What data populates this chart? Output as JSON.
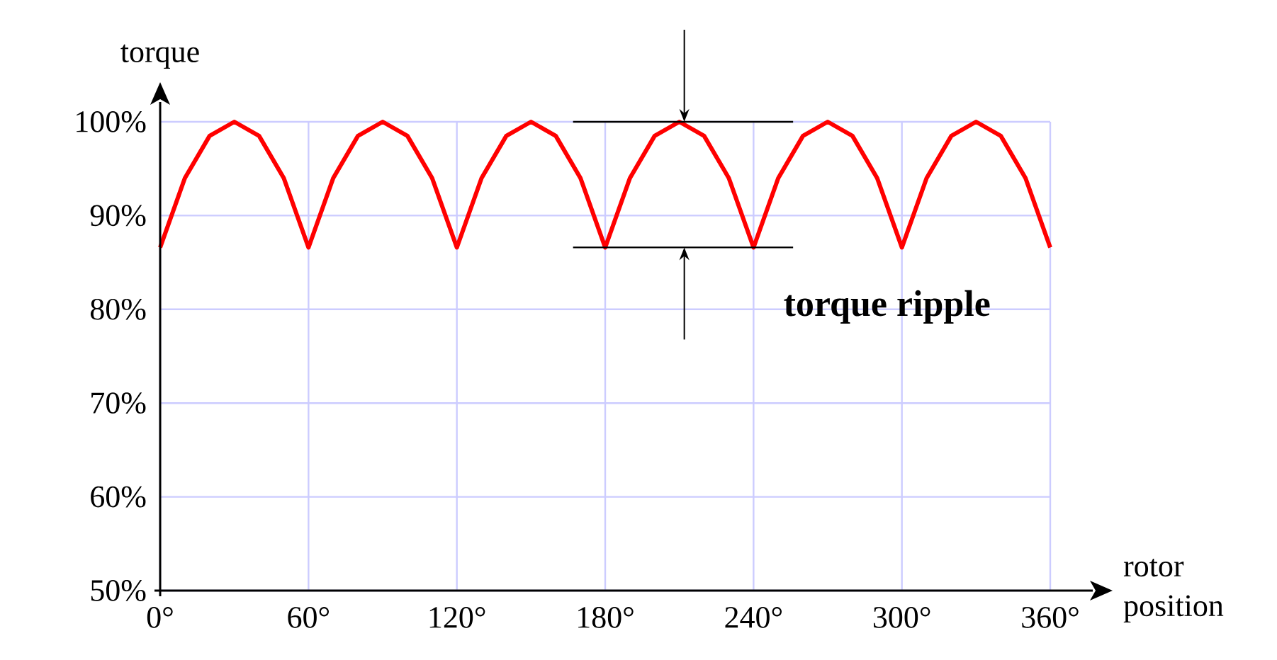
{
  "chart_data": {
    "type": "line",
    "xlabel": "rotor position",
    "ylabel": "torque",
    "x": [
      0,
      10,
      20,
      30,
      40,
      50,
      60,
      70,
      80,
      90,
      100,
      110,
      120,
      130,
      140,
      150,
      160,
      170,
      180,
      190,
      200,
      210,
      220,
      230,
      240,
      250,
      260,
      270,
      280,
      290,
      300,
      310,
      320,
      330,
      340,
      350,
      360
    ],
    "series": [
      {
        "color": "#ff0000",
        "values": [
          86.6,
          94,
          98.5,
          100,
          98.5,
          94,
          86.6,
          94,
          98.5,
          100,
          98.5,
          94,
          86.6,
          94,
          98.5,
          100,
          98.5,
          94,
          86.6,
          94,
          98.5,
          100,
          98.5,
          94,
          86.6,
          94,
          98.5,
          100,
          98.5,
          94,
          86.6,
          94,
          98.5,
          100,
          98.5,
          94,
          86.6
        ]
      }
    ],
    "xlim": [
      0,
      360
    ],
    "ylim": [
      50,
      100
    ],
    "xticks": [
      {
        "value": 0,
        "label": "0°"
      },
      {
        "value": 60,
        "label": "60°"
      },
      {
        "value": 120,
        "label": "120°"
      },
      {
        "value": 180,
        "label": "180°"
      },
      {
        "value": 240,
        "label": "240°"
      },
      {
        "value": 300,
        "label": "300°"
      },
      {
        "value": 360,
        "label": "360°"
      }
    ],
    "yticks": [
      {
        "value": 50,
        "label": "50%"
      },
      {
        "value": 60,
        "label": "60%"
      },
      {
        "value": 70,
        "label": "70%"
      },
      {
        "value": 80,
        "label": "80%"
      },
      {
        "value": 90,
        "label": "90%"
      },
      {
        "value": 100,
        "label": "100%"
      }
    ],
    "grid": true,
    "marker": "none",
    "line_style": "solid",
    "annotations": [
      "torque ripple"
    ]
  }
}
